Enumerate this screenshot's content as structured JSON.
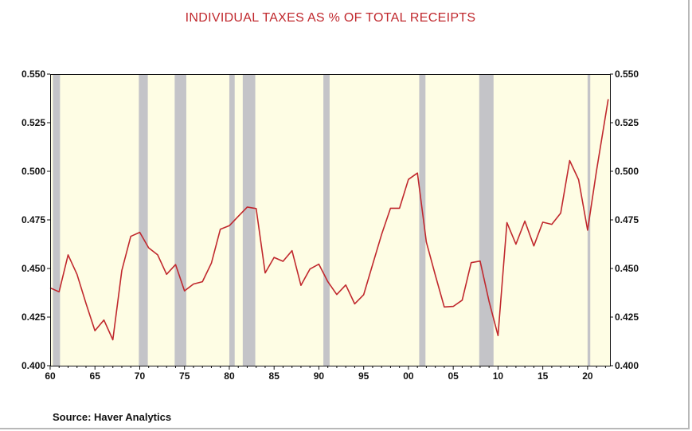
{
  "chart_data": {
    "type": "line",
    "title": "INDIVIDUAL TAXES AS % OF TOTAL RECEIPTS",
    "xlabel": "",
    "ylabel": "",
    "xlim": [
      1960,
      2022.5
    ],
    "ylim": [
      0.4,
      0.55
    ],
    "x_tick_values": [
      1960,
      1965,
      1970,
      1975,
      1980,
      1985,
      1990,
      1995,
      2000,
      2005,
      2010,
      2015,
      2020
    ],
    "x_tick_labels": [
      "60",
      "65",
      "70",
      "75",
      "80",
      "85",
      "90",
      "95",
      "00",
      "05",
      "10",
      "15",
      "20"
    ],
    "y_tick_values": [
      0.4,
      0.425,
      0.45,
      0.475,
      0.5,
      0.525,
      0.55
    ],
    "y_tick_labels": [
      "0.400",
      "0.425",
      "0.450",
      "0.475",
      "0.500",
      "0.525",
      "0.550"
    ],
    "y_ticks_both_sides": true,
    "grid": false,
    "legend": "none",
    "plot_background": "#fefde4",
    "recession_band_color": "#c4c4c8",
    "recessions": [
      [
        1960.3,
        1961.1
      ],
      [
        1969.9,
        1970.9
      ],
      [
        1973.9,
        1975.2
      ],
      [
        1980.0,
        1980.6
      ],
      [
        1981.5,
        1982.9
      ],
      [
        1990.5,
        1991.2
      ],
      [
        2001.2,
        2001.9
      ],
      [
        2007.9,
        2009.5
      ],
      [
        2020.0,
        2020.3
      ]
    ],
    "series": [
      {
        "color": "#c0282d",
        "x": [
          1960,
          1961,
          1962,
          1963,
          1964,
          1965,
          1966,
          1967,
          1968,
          1969,
          1970,
          1971,
          1972,
          1973,
          1974,
          1975,
          1976,
          1977,
          1978,
          1979,
          1980,
          1981,
          1982,
          1983,
          1984,
          1985,
          1986,
          1987,
          1988,
          1989,
          1990,
          1991,
          1992,
          1993,
          1994,
          1995,
          1996,
          1997,
          1998,
          1999,
          2000,
          2001,
          2002,
          2003,
          2004,
          2005,
          2006,
          2007,
          2008,
          2009,
          2010,
          2011,
          2012,
          2013,
          2014,
          2015,
          2016,
          2017,
          2018,
          2019,
          2020,
          2021,
          2022.3
        ],
        "values": [
          0.44,
          0.438,
          0.457,
          0.447,
          0.432,
          0.418,
          0.4235,
          0.4133,
          0.449,
          0.4665,
          0.4686,
          0.4606,
          0.457,
          0.447,
          0.452,
          0.4385,
          0.442,
          0.4432,
          0.4528,
          0.4702,
          0.472,
          0.4768,
          0.4816,
          0.4808,
          0.4477,
          0.4557,
          0.4537,
          0.4592,
          0.4413,
          0.4497,
          0.4522,
          0.4432,
          0.4366,
          0.4415,
          0.4318,
          0.4365,
          0.452,
          0.4675,
          0.481,
          0.481,
          0.4958,
          0.4991,
          0.4636,
          0.4465,
          0.4302,
          0.4305,
          0.4337,
          0.453,
          0.4538,
          0.433,
          0.4155,
          0.4736,
          0.4625,
          0.4744,
          0.4616,
          0.4738,
          0.4727,
          0.4785,
          0.5055,
          0.4957,
          0.4697,
          0.5003,
          0.5371
        ]
      }
    ]
  },
  "source": "Source:  Haver Analytics"
}
